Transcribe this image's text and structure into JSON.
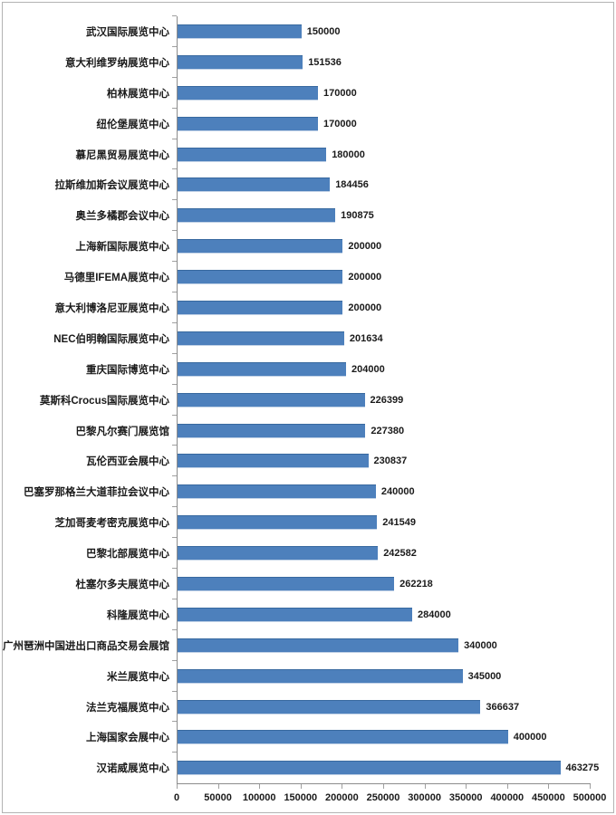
{
  "chart_data": {
    "type": "bar",
    "orientation": "horizontal",
    "title": "",
    "xlabel": "",
    "ylabel": "",
    "categories": [
      "武汉国际展览中心",
      "意大利维罗纳展览中心",
      "柏林展览中心",
      "纽伦堡展览中心",
      "慕尼黑贸易展览中心",
      "拉斯维加斯会议展览中心",
      "奥兰多橘郡会议中心",
      "上海新国际展览中心",
      "马德里IFEMA展览中心",
      "意大利博洛尼亚展览中心",
      "NEC伯明翰国际展览中心",
      "重庆国际博览中心",
      "莫斯科Crocus国际展览中心",
      "巴黎凡尔赛门展览馆",
      "瓦伦西亚会展中心",
      "巴塞罗那格兰大道菲拉会议中心",
      "芝加哥麦考密克展览中心",
      "巴黎北部展览中心",
      "杜塞尔多夫展览中心",
      "科隆展览中心",
      "广州琶洲中国进出口商品交易会展馆",
      "米兰展览中心",
      "法兰克福展览中心",
      "上海国家会展中心",
      "汉诺威展览中心"
    ],
    "values": [
      150000,
      151536,
      170000,
      170000,
      180000,
      184456,
      190875,
      200000,
      200000,
      200000,
      201634,
      204000,
      226399,
      227380,
      230837,
      240000,
      241549,
      242582,
      262218,
      284000,
      340000,
      345000,
      366637,
      400000,
      463275
    ],
    "data_labels": true,
    "xlim": [
      0,
      500000
    ],
    "x_ticks": [
      0,
      50000,
      100000,
      150000,
      200000,
      250000,
      300000,
      350000,
      400000,
      450000,
      500000
    ],
    "grid": false,
    "legend": false,
    "colors": {
      "bar_fill": "#4d80bc",
      "bar_border": "#38699f",
      "bar_edge": "#c3d3e7",
      "axis_line": "#8c8c8c",
      "tick": "#a0a0a0",
      "label_text": "#1a1a1a",
      "frame_border": "#b3b3b3",
      "background": "#ffffff"
    }
  }
}
